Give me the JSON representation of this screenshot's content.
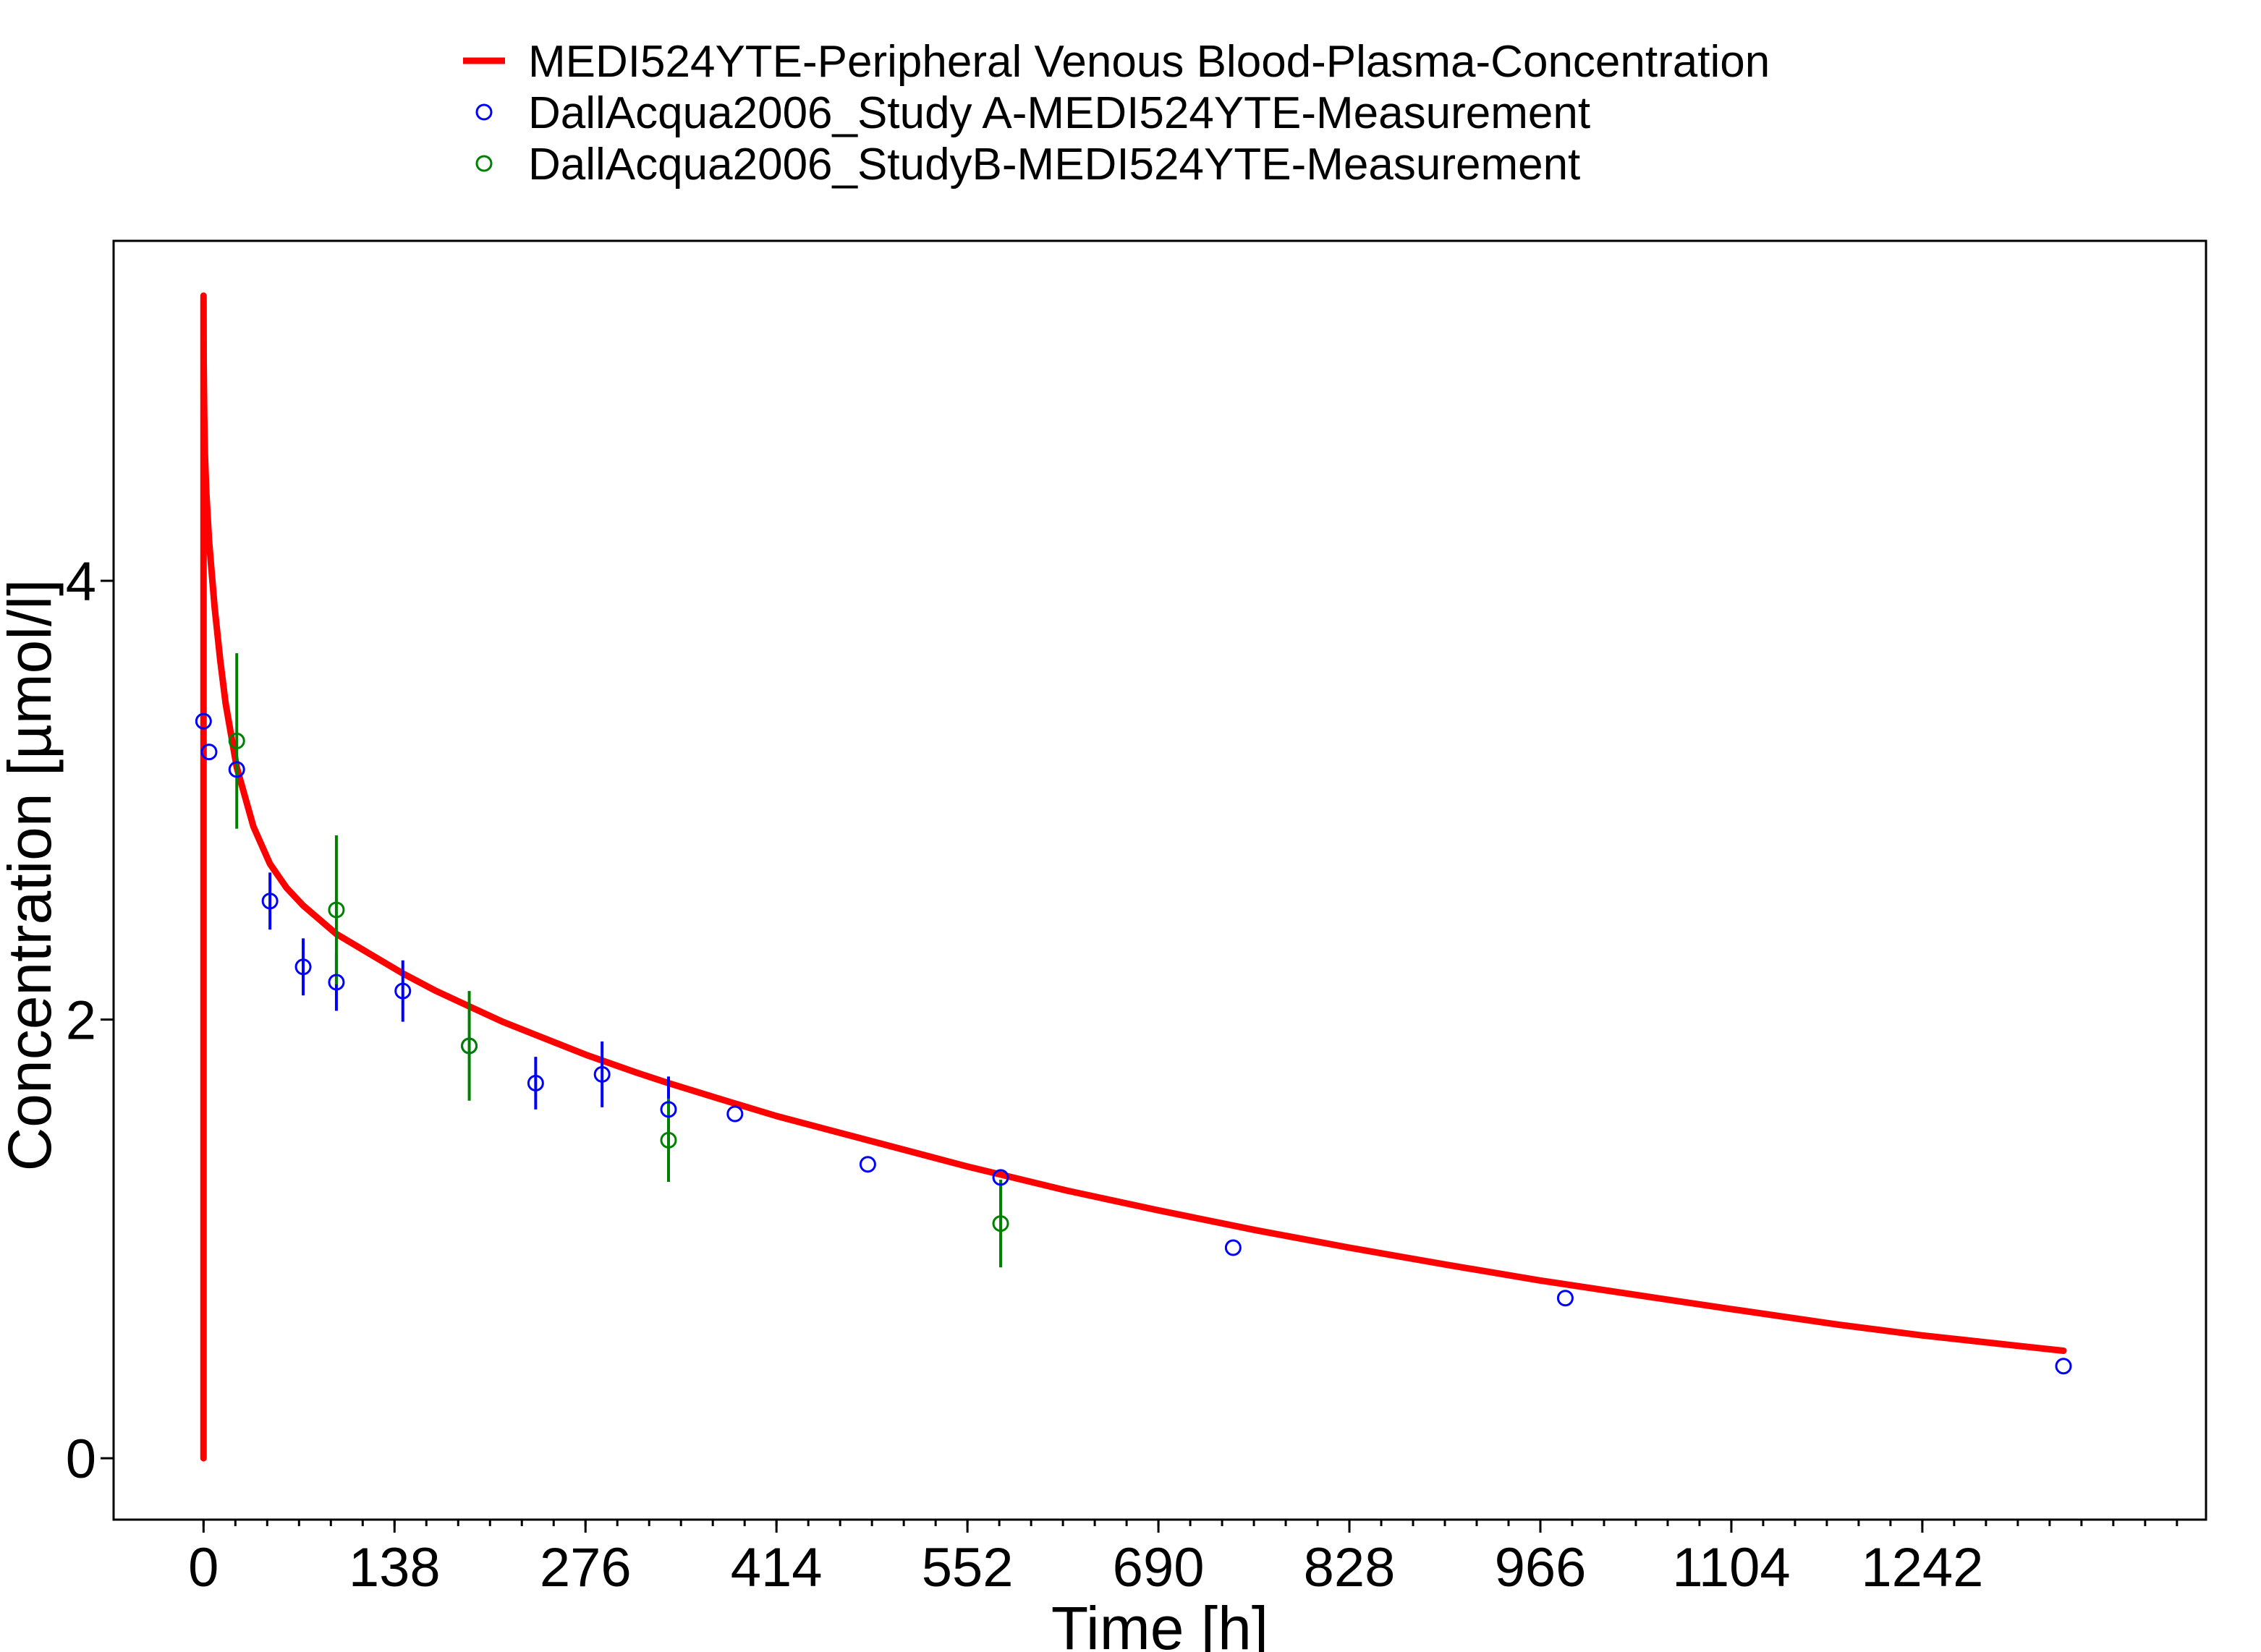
{
  "chart_data": {
    "type": "scatter",
    "xlabel": "Time [h]",
    "ylabel": "Concentration [µmol/l]",
    "xlim": [
      -65,
      1447
    ],
    "ylim": [
      -0.28,
      5.55
    ],
    "x_ticks": [
      0,
      138,
      276,
      414,
      552,
      690,
      828,
      966,
      1104,
      1242
    ],
    "y_ticks": [
      0,
      2,
      4
    ],
    "x_minor_step": 23,
    "grid": false,
    "legend_position": "top-center",
    "colors": {
      "simulation": "#ff0000",
      "study_a": "#0000ff",
      "study_b": "#008000"
    },
    "series": [
      {
        "name": "MEDI524YTE-Peripheral Venous Blood-Plasma-Concentration",
        "kind": "line",
        "color": "#ff0000",
        "x": [
          0,
          0,
          0.1,
          0.5,
          1,
          2,
          4,
          8,
          12,
          16,
          24,
          36,
          48,
          60,
          72,
          96,
          120,
          144,
          168,
          192,
          216,
          240,
          276,
          312,
          336,
          372,
          414,
          480,
          552,
          624,
          690,
          760,
          828,
          900,
          966,
          1040,
          1104,
          1180,
          1242,
          1300,
          1344
        ],
        "y": [
          0,
          5.3,
          5.0,
          4.75,
          4.58,
          4.4,
          4.18,
          3.88,
          3.64,
          3.44,
          3.15,
          2.88,
          2.71,
          2.6,
          2.52,
          2.39,
          2.3,
          2.21,
          2.13,
          2.06,
          1.99,
          1.93,
          1.84,
          1.76,
          1.71,
          1.64,
          1.56,
          1.45,
          1.33,
          1.22,
          1.13,
          1.04,
          0.96,
          0.88,
          0.81,
          0.74,
          0.68,
          0.61,
          0.56,
          0.52,
          0.49
        ]
      },
      {
        "name": "DallAcqua2006_Study A-MEDI524YTE-Measurement",
        "kind": "points",
        "color": "#0000ff",
        "x": [
          0,
          4,
          24,
          48,
          72,
          96,
          144,
          192,
          240,
          288,
          336,
          384,
          480,
          576,
          744,
          984,
          1344
        ],
        "y": [
          3.36,
          3.22,
          3.14,
          2.54,
          2.24,
          2.17,
          2.13,
          1.88,
          1.71,
          1.75,
          1.59,
          1.57,
          1.34,
          1.28,
          0.96,
          0.73,
          0.42
        ],
        "y_err": [
          0,
          0,
          0,
          0.13,
          0.13,
          0.13,
          0.14,
          0,
          0.12,
          0.15,
          0.15,
          0,
          0,
          0,
          0,
          0,
          0
        ]
      },
      {
        "name": "DallAcqua2006_StudyB-MEDI524YTE-Measurement",
        "kind": "points",
        "color": "#008000",
        "x": [
          24,
          96,
          192,
          336,
          576
        ],
        "y": [
          3.27,
          2.5,
          1.88,
          1.45,
          1.07
        ],
        "y_err": [
          0.4,
          0.34,
          0.25,
          0.19,
          0.2
        ]
      }
    ]
  }
}
